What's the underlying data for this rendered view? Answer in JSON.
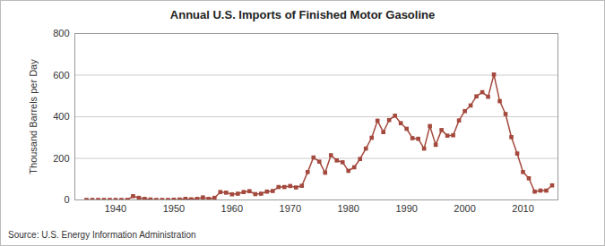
{
  "chart_data": {
    "type": "line",
    "title": "Annual U.S. Imports of Finished Motor Gasoline",
    "y_label": "Thousand Barrels per Day",
    "source": "Source: U.S. Energy Information Administration",
    "x": [
      1935,
      1936,
      1937,
      1938,
      1939,
      1940,
      1941,
      1942,
      1943,
      1944,
      1945,
      1946,
      1947,
      1948,
      1949,
      1950,
      1951,
      1952,
      1953,
      1954,
      1955,
      1956,
      1957,
      1958,
      1959,
      1960,
      1961,
      1962,
      1963,
      1964,
      1965,
      1966,
      1967,
      1968,
      1969,
      1970,
      1971,
      1972,
      1973,
      1974,
      1975,
      1976,
      1977,
      1978,
      1979,
      1980,
      1981,
      1982,
      1983,
      1984,
      1985,
      1986,
      1987,
      1988,
      1989,
      1990,
      1991,
      1992,
      1993,
      1994,
      1995,
      1996,
      1997,
      1998,
      1999,
      2000,
      2001,
      2002,
      2003,
      2004,
      2005,
      2006,
      2007,
      2008,
      2009,
      2010,
      2011,
      2012,
      2013,
      2014,
      2015
    ],
    "series": [
      {
        "name": "Imports",
        "color": "#a4493d",
        "marker": "square",
        "values": [
          0,
          0,
          0,
          0,
          0,
          0,
          0,
          0,
          18,
          10,
          5,
          2,
          0,
          0,
          0,
          1,
          2,
          5,
          3,
          5,
          12,
          5,
          10,
          38,
          35,
          27,
          30,
          38,
          42,
          28,
          30,
          40,
          43,
          62,
          62,
          67,
          60,
          68,
          134,
          204,
          184,
          131,
          215,
          190,
          181,
          140,
          157,
          197,
          247,
          299,
          381,
          326,
          384,
          405,
          369,
          342,
          297,
          294,
          247,
          355,
          265,
          336,
          309,
          311,
          382,
          427,
          454,
          498,
          518,
          496,
          603,
          475,
          413,
          302,
          223,
          134,
          104,
          40,
          45,
          45,
          70
        ]
      }
    ],
    "xlim": [
      1933,
      2016
    ],
    "xticks": [
      1940,
      1950,
      1960,
      1970,
      1980,
      1990,
      2000,
      2010
    ],
    "ylim": [
      0,
      800
    ],
    "yticks": [
      0,
      200,
      400,
      600,
      800
    ],
    "grid": true
  }
}
